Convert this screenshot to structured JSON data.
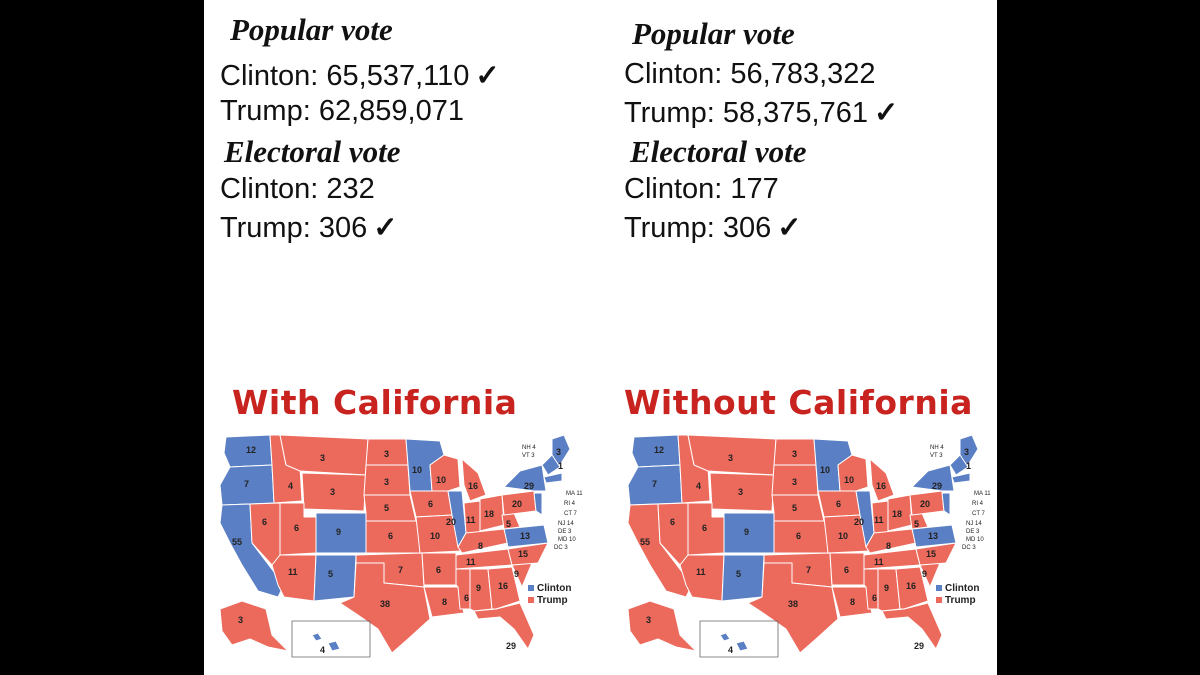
{
  "with_california": {
    "popular_heading": "Popular vote",
    "popular_clinton": "Clinton: 65,537,110",
    "popular_trump": "Trump: 62,859,071",
    "popular_winner": "clinton",
    "electoral_heading": "Electoral vote",
    "electoral_clinton": "Clinton: 232",
    "electoral_trump": "Trump: 306",
    "electoral_winner": "trump",
    "caption": "With California"
  },
  "without_california": {
    "popular_heading": "Popular vote",
    "popular_clinton": "Clinton: 56,783,322",
    "popular_trump": "Trump: 58,375,761",
    "popular_winner": "trump",
    "electoral_heading": "Electoral vote",
    "electoral_clinton": "Clinton: 177",
    "electoral_trump": "Trump: 306",
    "electoral_winner": "trump",
    "caption": "Without California"
  },
  "check_mark": "✓",
  "legend": {
    "clinton": "Clinton",
    "trump": "Trump"
  },
  "colors": {
    "clinton": "#5b7fc4",
    "trump": "#ec6a5c",
    "caption": "#c8231f",
    "border": "#ffffff"
  },
  "map_labels": {
    "wa": "12",
    "or": "7",
    "ca": "55",
    "nv": "6",
    "id": "4",
    "mt": "3",
    "wy": "3",
    "ut": "6",
    "az": "11",
    "co": "9",
    "nm": "5",
    "nd": "3",
    "sd": "3",
    "ne": "5",
    "ks": "6",
    "ok": "7",
    "tx": "38",
    "mn": "10",
    "ia": "6",
    "mo": "10",
    "ar": "6",
    "la": "8",
    "wi": "10",
    "il": "20",
    "ms": "6",
    "mi": "16",
    "in": "11",
    "ky": "8",
    "tn": "11",
    "al": "9",
    "oh": "18",
    "ga": "16",
    "fl": "29",
    "sc": "9",
    "nc": "15",
    "va": "13",
    "wv": "5",
    "pa": "20",
    "ny": "29",
    "me": "3",
    "me2": "1",
    "ak": "3",
    "hi": "4",
    "nh": "NH 4",
    "vt": "VT 3",
    "ma": "MA 11",
    "ri": "RI 4",
    "ct": "CT 7",
    "nj": "NJ 14",
    "de": "DE 3",
    "md": "MD 10",
    "dc": "DC 3"
  }
}
